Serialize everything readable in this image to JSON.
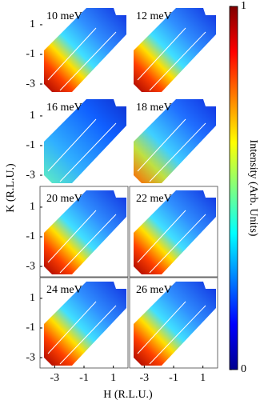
{
  "chart_data": {
    "type": "heatmap-grid",
    "xlabel": "H (R.L.U.)",
    "ylabel": "K (R.L.U.)",
    "colorbar_label": "Intensity (Arb. Units)",
    "clim": [
      0,
      1
    ],
    "colorbar_ticks": [
      0,
      1
    ],
    "colormap": "jet",
    "xlim": [
      -4,
      2
    ],
    "xticks": [
      -3,
      -1,
      1
    ],
    "ylim": [
      -3.7,
      2.4
    ],
    "yticks": [
      1,
      -1,
      -3
    ],
    "panels": [
      {
        "title": "10 meV"
      },
      {
        "title": "12 meV"
      },
      {
        "title": "16 meV"
      },
      {
        "title": "18 meV"
      },
      {
        "title": "20 meV"
      },
      {
        "title": "22 meV"
      },
      {
        "title": "24 meV"
      },
      {
        "title": "26 meV"
      }
    ]
  }
}
